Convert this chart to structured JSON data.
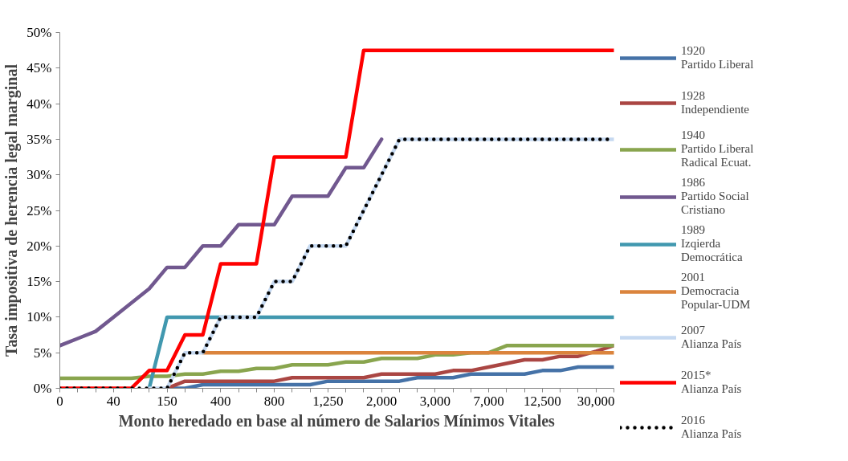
{
  "chart_data": {
    "type": "line",
    "xlabel": "Monto heredado en base al número de Salarios Mínimos Vitales",
    "ylabel": "Tasa impositiva de herencia legal marginal",
    "categories": [
      "0",
      null,
      null,
      "40",
      null,
      null,
      "150",
      null,
      null,
      "400",
      null,
      null,
      "800",
      null,
      null,
      "1,250",
      null,
      null,
      "2,000",
      null,
      null,
      "3,000",
      null,
      null,
      "7,000",
      null,
      null,
      "12,500",
      null,
      null,
      "30,000",
      null
    ],
    "ylim": [
      0,
      50
    ],
    "yticks": [
      {
        "value": 0,
        "label": "0%"
      },
      {
        "value": 5,
        "label": "5%"
      },
      {
        "value": 10,
        "label": "10%"
      },
      {
        "value": 15,
        "label": "15%"
      },
      {
        "value": 20,
        "label": "20%"
      },
      {
        "value": 25,
        "label": "25%"
      },
      {
        "value": 30,
        "label": "30%"
      },
      {
        "value": 35,
        "label": "35%"
      },
      {
        "value": 40,
        "label": "40%"
      },
      {
        "value": 45,
        "label": "45%"
      },
      {
        "value": 50,
        "label": "50%"
      }
    ],
    "grid": false,
    "legend": "right",
    "marker": "none",
    "series": [
      {
        "name": "1920\nPartido Liberal",
        "color": "#4572a7",
        "line_style": "solid",
        "values": [
          null,
          null,
          null,
          null,
          null,
          null,
          0,
          0,
          0.5,
          0.5,
          0.5,
          0.5,
          0.5,
          0.5,
          0.5,
          1,
          1,
          1,
          1,
          1,
          1.5,
          1.5,
          1.5,
          2,
          2,
          2,
          2,
          2.5,
          2.5,
          3,
          3,
          3
        ]
      },
      {
        "name": "1928\nIndependiente",
        "color": "#aa4643",
        "line_style": "solid",
        "values": [
          null,
          null,
          null,
          null,
          null,
          null,
          0,
          1,
          1,
          1,
          1,
          1,
          1,
          1.5,
          1.5,
          1.5,
          1.5,
          1.5,
          2,
          2,
          2,
          2,
          2.5,
          2.5,
          3,
          3.5,
          4,
          4,
          4.5,
          4.5,
          5.2,
          6
        ]
      },
      {
        "name": "1940\nPartido Liberal\nRadical Ecuat.",
        "color": "#89a54e",
        "line_style": "solid",
        "values": [
          1.4,
          1.4,
          1.4,
          1.4,
          1.4,
          1.7,
          1.7,
          2,
          2,
          2.4,
          2.4,
          2.8,
          2.8,
          3.3,
          3.3,
          3.3,
          3.7,
          3.7,
          4.2,
          4.2,
          4.2,
          4.7,
          4.7,
          5,
          5,
          6,
          6,
          6,
          6,
          6,
          6,
          6
        ]
      },
      {
        "name": "1986\nPartido Social\nCristiano",
        "color": "#71588f",
        "line_style": "solid",
        "values": [
          6,
          7,
          8,
          10,
          12,
          14,
          17,
          17,
          20,
          20,
          23,
          23,
          23,
          27,
          27,
          27,
          31,
          31,
          35,
          null,
          null,
          null,
          null,
          null,
          null,
          null,
          null,
          null,
          null,
          null,
          null,
          null
        ]
      },
      {
        "name": "1989\nIzqierda\nDemocrática",
        "color": "#4198af",
        "line_style": "solid",
        "values": [
          null,
          null,
          null,
          null,
          null,
          0,
          10,
          10,
          10,
          10,
          10,
          10,
          10,
          10,
          10,
          10,
          10,
          10,
          10,
          10,
          10,
          10,
          10,
          10,
          10,
          10,
          10,
          10,
          10,
          10,
          10,
          10
        ]
      },
      {
        "name": "2001\nDemocracia\nPopular-UDM",
        "color": "#db843d",
        "line_style": "solid",
        "values": [
          null,
          null,
          null,
          null,
          null,
          null,
          null,
          null,
          5,
          5,
          5,
          5,
          5,
          5,
          5,
          5,
          5,
          5,
          5,
          5,
          5,
          5,
          5,
          5,
          5,
          5,
          5,
          5,
          5,
          5,
          5,
          5
        ]
      },
      {
        "name": "2007\nAlianza País",
        "color": "#c6d9f1",
        "line_style": "solid",
        "values": [
          null,
          null,
          null,
          null,
          null,
          0,
          0,
          5,
          5,
          10,
          10,
          10,
          15,
          15,
          20,
          20,
          20,
          25,
          30,
          35,
          35,
          35,
          35,
          35,
          35,
          35,
          35,
          35,
          35,
          35,
          35,
          35
        ]
      },
      {
        "name": "2015*\nAlianza País",
        "color": "#ff0000",
        "line_style": "solid",
        "values": [
          0,
          0,
          0,
          0,
          0,
          2.5,
          2.5,
          7.5,
          7.5,
          17.5,
          17.5,
          17.5,
          32.5,
          32.5,
          32.5,
          32.5,
          32.5,
          47.5,
          47.5,
          47.5,
          47.5,
          47.5,
          47.5,
          47.5,
          47.5,
          47.5,
          47.5,
          47.5,
          47.5,
          47.5,
          47.5,
          47.5
        ]
      },
      {
        "name": "2016\nAlianza País",
        "color": "#000000",
        "line_style": "dotted",
        "values": [
          0,
          0,
          0,
          0,
          0,
          0,
          0,
          5,
          5,
          10,
          10,
          10,
          15,
          15,
          20,
          20,
          20,
          25,
          30,
          35,
          35,
          35,
          35,
          35,
          35,
          35,
          35,
          35,
          35,
          35,
          35,
          35
        ]
      }
    ]
  }
}
